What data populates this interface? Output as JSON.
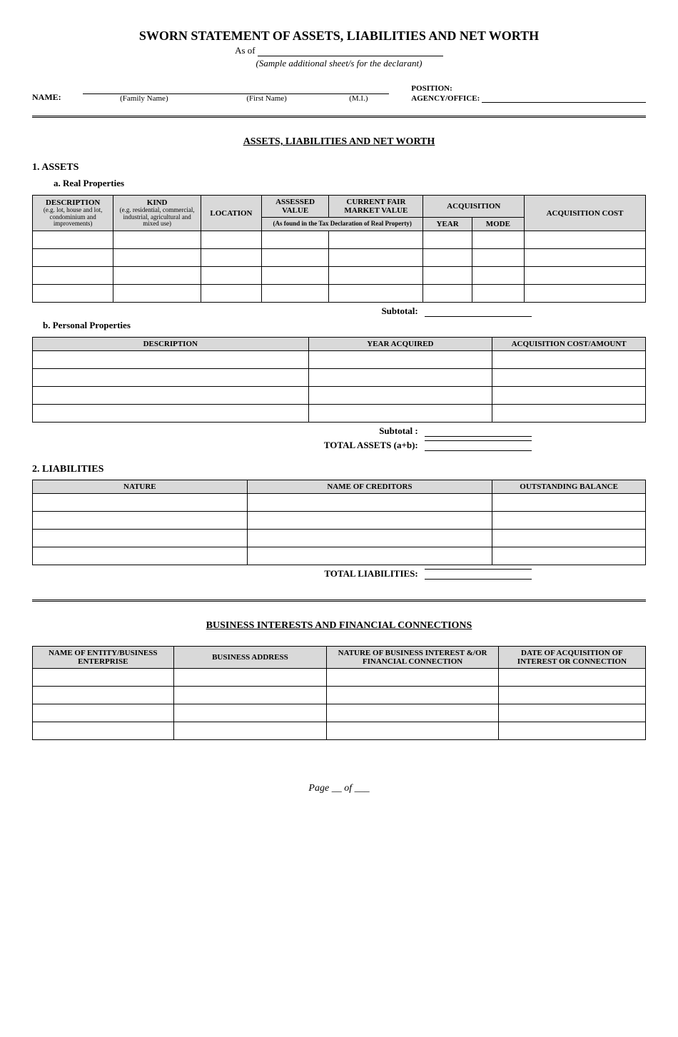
{
  "title": "SWORN STATEMENT OF ASSETS, LIABILITIES AND NET WORTH",
  "as_of_label": "As of",
  "sample_note": "(Sample additional sheet/s for the declarant)",
  "name_block": {
    "label": "NAME:",
    "family": "(Family Name)",
    "first": "(First Name)",
    "mi": "(M.I.)",
    "position_label": "POSITION:",
    "agency_label": "AGENCY/OFFICE:"
  },
  "section_assets_title": "ASSETS, LIABILITIES AND NET WORTH",
  "s1": {
    "heading": "1.  ASSETS",
    "sub_a": "a.    Real Properties",
    "real_table": {
      "headers": {
        "description": "DESCRIPTION",
        "description_note": "(e.g. lot, house and lot, condominium and improvements)",
        "kind": "KIND",
        "kind_note": "(e.g. residential, commercial, industrial, agricultural and mixed use)",
        "location": "LOCATION",
        "assessed": "ASSESSED VALUE",
        "current_fair": "CURRENT FAIR MARKET VALUE",
        "tax_note": "(As found in the Tax Declaration of Real Property)",
        "acquisition": "ACQUISITION",
        "year": "YEAR",
        "mode": "MODE",
        "cost": "ACQUISITION COST"
      },
      "row_count": 4
    },
    "subtotal_a": "Subtotal:",
    "sub_b": "b. Personal Properties",
    "personal_table": {
      "headers": {
        "description": "DESCRIPTION",
        "year_acquired": "YEAR ACQUIRED",
        "cost": "ACQUISITION COST/AMOUNT"
      },
      "row_count": 4
    },
    "subtotal_b": "Subtotal :",
    "total_assets": "TOTAL ASSETS (a+b):"
  },
  "s2": {
    "heading": "2.  LIABILITIES",
    "table": {
      "headers": {
        "nature": "NATURE",
        "creditors": "NAME OF CREDITORS",
        "balance": "OUTSTANDING BALANCE"
      },
      "row_count": 4
    },
    "total": "TOTAL LIABILITIES:"
  },
  "section_biz_title": "BUSINESS INTERESTS AND FINANCIAL  CONNECTIONS",
  "biz_table": {
    "headers": {
      "name": "NAME OF ENTITY/BUSINESS ENTERPRISE",
      "address": "BUSINESS ADDRESS",
      "nature": "NATURE OF BUSINESS INTEREST &/OR FINANCIAL CONNECTION",
      "date": "DATE OF ACQUISITION OF INTEREST OR CONNECTION"
    },
    "row_count": 4
  },
  "footer": "Page __ of ___"
}
